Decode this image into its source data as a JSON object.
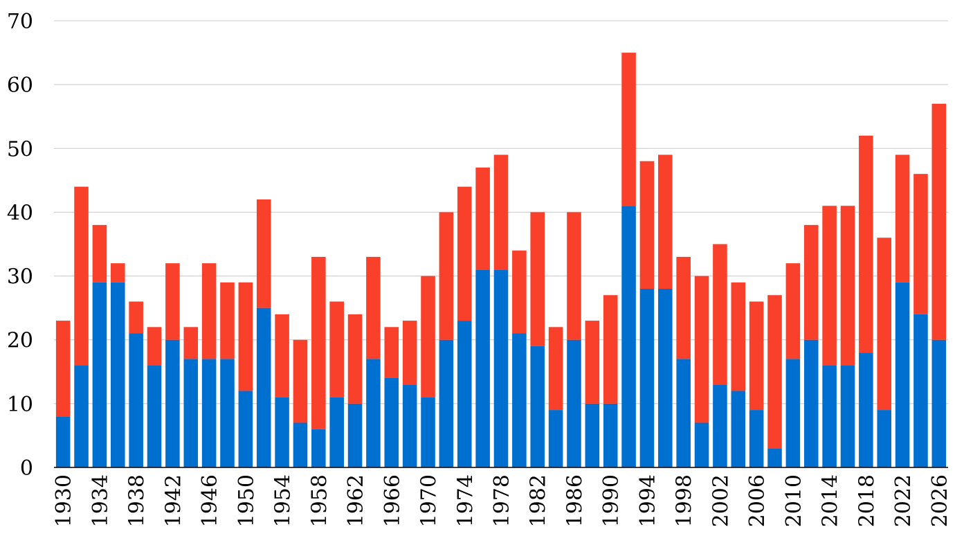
{
  "chart_data": {
    "type": "bar",
    "stacked": true,
    "title": "",
    "xlabel": "",
    "ylabel": "",
    "ylim": [
      0,
      70
    ],
    "y_ticks": [
      0,
      10,
      20,
      30,
      40,
      50,
      60,
      70
    ],
    "grid": true,
    "legend": "none",
    "x_tick_labels": [
      "1930",
      "1934",
      "1938",
      "1942",
      "1946",
      "1950",
      "1954",
      "1958",
      "1962",
      "1966",
      "1970",
      "1974",
      "1978",
      "1982",
      "1986",
      "1990",
      "1994",
      "1998",
      "2002",
      "2006",
      "2010",
      "2014",
      "2018",
      "2022",
      "2026"
    ],
    "categories": [
      "1930",
      "1932",
      "1934",
      "1936",
      "1938",
      "1940",
      "1942",
      "1944",
      "1946",
      "1948",
      "1950",
      "1952",
      "1954",
      "1956",
      "1958",
      "1960",
      "1962",
      "1964",
      "1966",
      "1968",
      "1970",
      "1972",
      "1974",
      "1976",
      "1978",
      "1980",
      "1982",
      "1984",
      "1986",
      "1988",
      "1990",
      "1992",
      "1994",
      "1996",
      "1998",
      "2000",
      "2002",
      "2004",
      "2006",
      "2008",
      "2010",
      "2012",
      "2014",
      "2016",
      "2018",
      "2020",
      "2022",
      "2024",
      "2026"
    ],
    "series": [
      {
        "color": "#0070d0",
        "values": [
          8,
          16,
          29,
          29,
          21,
          16,
          20,
          17,
          17,
          17,
          12,
          25,
          11,
          7,
          6,
          11,
          10,
          17,
          14,
          13,
          11,
          20,
          23,
          31,
          31,
          21,
          19,
          9,
          20,
          10,
          10,
          41,
          28,
          28,
          17,
          7,
          13,
          12,
          9,
          3,
          17,
          20,
          16,
          16,
          18,
          9,
          29,
          24,
          20
        ]
      },
      {
        "color": "#f8402a",
        "values": [
          15,
          28,
          9,
          3,
          5,
          6,
          12,
          5,
          15,
          12,
          17,
          17,
          13,
          13,
          27,
          15,
          14,
          16,
          8,
          10,
          19,
          20,
          21,
          16,
          18,
          13,
          21,
          13,
          20,
          13,
          17,
          24,
          20,
          21,
          16,
          23,
          22,
          17,
          17,
          24,
          15,
          18,
          25,
          25,
          34,
          27,
          20,
          22,
          37
        ]
      }
    ]
  }
}
